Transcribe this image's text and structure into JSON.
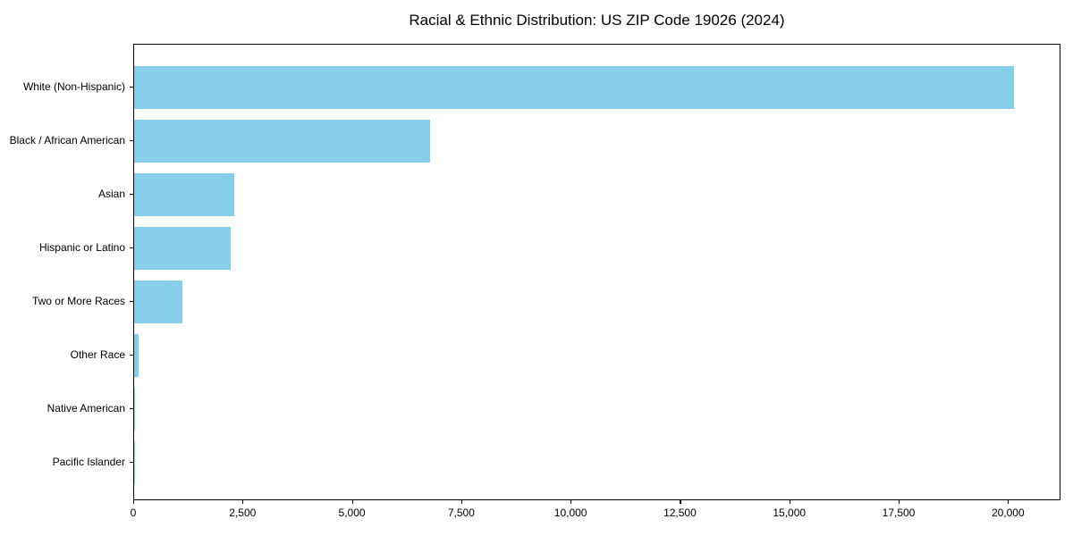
{
  "chart_data": {
    "type": "bar",
    "orientation": "horizontal",
    "title": "Racial & Ethnic Distribution: US ZIP Code 19026 (2024)",
    "categories": [
      "White (Non-Hispanic)",
      "Black / African American",
      "Asian",
      "Hispanic or Latino",
      "Two or More Races",
      "Other Race",
      "Native American",
      "Pacific Islander"
    ],
    "values": [
      20160,
      6780,
      2290,
      2210,
      1110,
      110,
      10,
      5
    ],
    "x_ticks": [
      0,
      2500,
      5000,
      7500,
      10000,
      12500,
      15000,
      17500,
      20000
    ],
    "x_tick_labels": [
      "0",
      "2,500",
      "5,000",
      "7,500",
      "10,000",
      "12,500",
      "15,000",
      "17,500",
      "20,000"
    ],
    "xlim": [
      0,
      21200
    ],
    "xlabel": "",
    "ylabel": "",
    "grid": false,
    "legend": null,
    "bar_color": "#87CEEB",
    "axis_color": "#000000",
    "background_color": "#ffffff"
  }
}
